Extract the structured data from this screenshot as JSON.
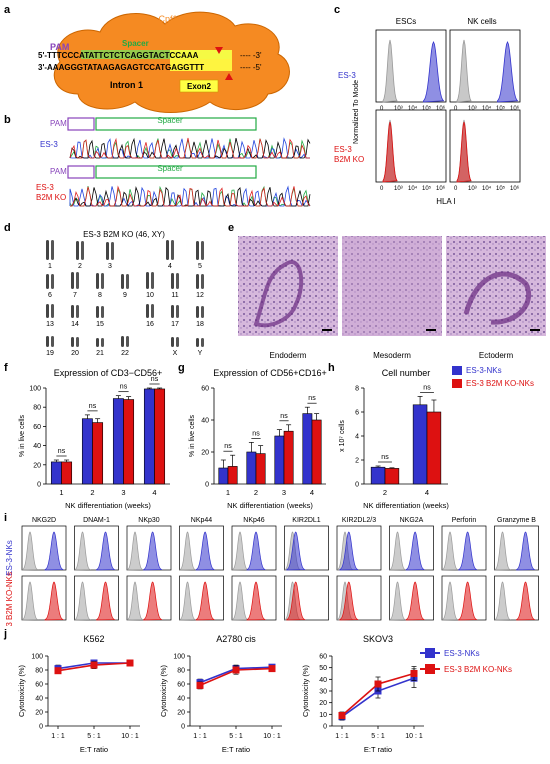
{
  "colors": {
    "blue": "#3333cc",
    "red": "#dd1111",
    "orange": "#f58a22",
    "green": "#22aa44",
    "purple": "#8844bb",
    "gray": "#9a9a9a"
  },
  "panel_a": {
    "letter": "a",
    "enzyme": "Cpf1",
    "pam": "PAM",
    "spacer": "Spacer",
    "strand_top": "5'-TTTCCCATATTCTCTCAGGTACTCCAAA",
    "strand_top_end": "---- -3'",
    "strand_bottom": "3'-AAAGGGTATAAGAGAGTCCATGAGGTTT",
    "strand_bottom_end": "---- -5'",
    "intron": "Intron 1",
    "exon": "Exon2"
  },
  "panel_b": {
    "letter": "b",
    "pam": "PAM",
    "spacer": "Spacer",
    "row1": "ES-3",
    "row2_line1": "ES-3",
    "row2_line2": "B2M KO"
  },
  "panel_c": {
    "letter": "c",
    "col1": "ESCs",
    "col2": "NK cells",
    "row1": "ES-3",
    "row2_line1": "ES-3",
    "row2_line2": "B2M KO",
    "ylabel": "Normalized To Mode",
    "xlabel": "HLA I",
    "ticks": [
      "0",
      "10³",
      "10⁴",
      "10⁵",
      "10⁶"
    ]
  },
  "panel_d": {
    "letter": "d",
    "title": "ES-3 B2M KO (46, XY)",
    "labels": [
      "1",
      "2",
      "3",
      "4",
      "5",
      "6",
      "7",
      "8",
      "9",
      "10",
      "11",
      "12",
      "13",
      "14",
      "15",
      "16",
      "17",
      "18",
      "19",
      "20",
      "21",
      "22",
      "X",
      "Y"
    ]
  },
  "panel_e": {
    "letter": "e",
    "labels": [
      "Endoderm",
      "Mesoderm",
      "Ectoderm"
    ]
  },
  "panel_i": {
    "letter": "i",
    "markers": [
      "NKG2D",
      "DNAM-1",
      "NKp30",
      "NKp44",
      "NKp46",
      "KIR2DL1",
      "KIR2DL2/3",
      "NKG2A",
      "Perforin",
      "Granzyme B"
    ],
    "row1": "ES-3-NKs",
    "row2": "ES-3 B2M KO-NKs"
  },
  "legend_h": [
    "ES-3-NKs",
    "ES-3 B2M KO-NKs"
  ],
  "legend_j": [
    "ES-3-NKs",
    "ES-3 B2M KO-NKs"
  ],
  "chart_data": [
    {
      "panel": "f",
      "type": "bar",
      "title": "Expression of CD3−CD56+",
      "ylabel": "% in live cells",
      "xlabel": "NK differentiation (weeks)",
      "categories": [
        "1",
        "2",
        "3",
        "4"
      ],
      "ylim": [
        0,
        100
      ],
      "yticks": [
        "0",
        "20",
        "40",
        "60",
        "80",
        "100"
      ],
      "series": [
        {
          "name": "ES-3-NKs",
          "values": [
            23,
            68,
            89,
            99
          ],
          "err": [
            2,
            4,
            3,
            1
          ]
        },
        {
          "name": "ES-3 B2M KO-NKs",
          "values": [
            23,
            64,
            88,
            99
          ],
          "err": [
            2,
            4,
            3,
            1
          ]
        }
      ],
      "annotations": [
        "ns",
        "ns",
        "ns",
        "ns"
      ]
    },
    {
      "panel": "g",
      "type": "bar",
      "title": "Expression of CD56+CD16+",
      "ylabel": "% in live cells",
      "xlabel": "NK differentiation (weeks)",
      "categories": [
        "1",
        "2",
        "3",
        "4"
      ],
      "ylim": [
        0,
        60
      ],
      "yticks": [
        "0",
        "20",
        "40",
        "60"
      ],
      "series": [
        {
          "name": "ES-3-NKs",
          "values": [
            10,
            20,
            30,
            44
          ],
          "err": [
            5,
            6,
            4,
            4
          ]
        },
        {
          "name": "ES-3 B2M KO-NKs",
          "values": [
            11,
            19,
            33,
            40
          ],
          "err": [
            7,
            5,
            4,
            4
          ]
        }
      ],
      "annotations": [
        "ns",
        "ns",
        "ns",
        "ns"
      ]
    },
    {
      "panel": "h",
      "type": "bar",
      "title": "Cell number",
      "ylabel": "x 10⁷ cells",
      "xlabel": "NK differentiation (weeks)",
      "categories": [
        "2",
        "4"
      ],
      "ylim": [
        0,
        8
      ],
      "yticks": [
        "0",
        "2",
        "4",
        "6",
        "8"
      ],
      "series": [
        {
          "name": "ES-3-NKs",
          "values": [
            1.4,
            6.6
          ],
          "err": [
            0.1,
            0.7
          ]
        },
        {
          "name": "ES-3 B2M KO-NKs",
          "values": [
            1.3,
            6.0
          ],
          "err": [
            0.05,
            1.0
          ]
        }
      ],
      "annotations": [
        "ns",
        "ns"
      ]
    },
    {
      "panel": "j1",
      "type": "line",
      "title": "K562",
      "ylabel": "Cytotoxicity (%)",
      "xlabel": "E:T ratio",
      "categories": [
        "1 : 1",
        "5 : 1",
        "10 : 1"
      ],
      "ylim": [
        0,
        100
      ],
      "yticks": [
        "0",
        "20",
        "40",
        "60",
        "80",
        "100"
      ],
      "series": [
        {
          "name": "ES-3-NKs",
          "values": [
            82,
            90,
            90
          ],
          "err": [
            5,
            4,
            3
          ]
        },
        {
          "name": "ES-3 B2M KO-NKs",
          "values": [
            79,
            87,
            90
          ],
          "err": [
            4,
            5,
            4
          ]
        }
      ]
    },
    {
      "panel": "j2",
      "type": "line",
      "title": "A2780 cis",
      "ylabel": "Cytotoxicity (%)",
      "xlabel": "E:T ratio",
      "categories": [
        "1 : 1",
        "5 : 1",
        "10 : 1"
      ],
      "ylim": [
        0,
        100
      ],
      "yticks": [
        "0",
        "20",
        "40",
        "60",
        "80",
        "100"
      ],
      "series": [
        {
          "name": "ES-3-NKs",
          "values": [
            62,
            82,
            84
          ],
          "err": [
            5,
            5,
            2
          ]
        },
        {
          "name": "ES-3 B2M KO-NKs",
          "values": [
            58,
            80,
            82
          ],
          "err": [
            5,
            6,
            3
          ]
        }
      ]
    },
    {
      "panel": "j3",
      "type": "line",
      "title": "SKOV3",
      "ylabel": "Cytotoxicity (%)",
      "xlabel": "E:T ratio",
      "categories": [
        "1 : 1",
        "5 : 1",
        "10 : 1"
      ],
      "ylim": [
        0,
        60
      ],
      "yticks": [
        "0",
        "10",
        "20",
        "30",
        "40",
        "50",
        "60"
      ],
      "series": [
        {
          "name": "ES-3-NKs",
          "values": [
            8,
            30,
            41
          ],
          "err": [
            3,
            6,
            8
          ]
        },
        {
          "name": "ES-3 B2M KO-NKs",
          "values": [
            9,
            36,
            45
          ],
          "err": [
            3,
            6,
            6
          ]
        }
      ]
    }
  ]
}
